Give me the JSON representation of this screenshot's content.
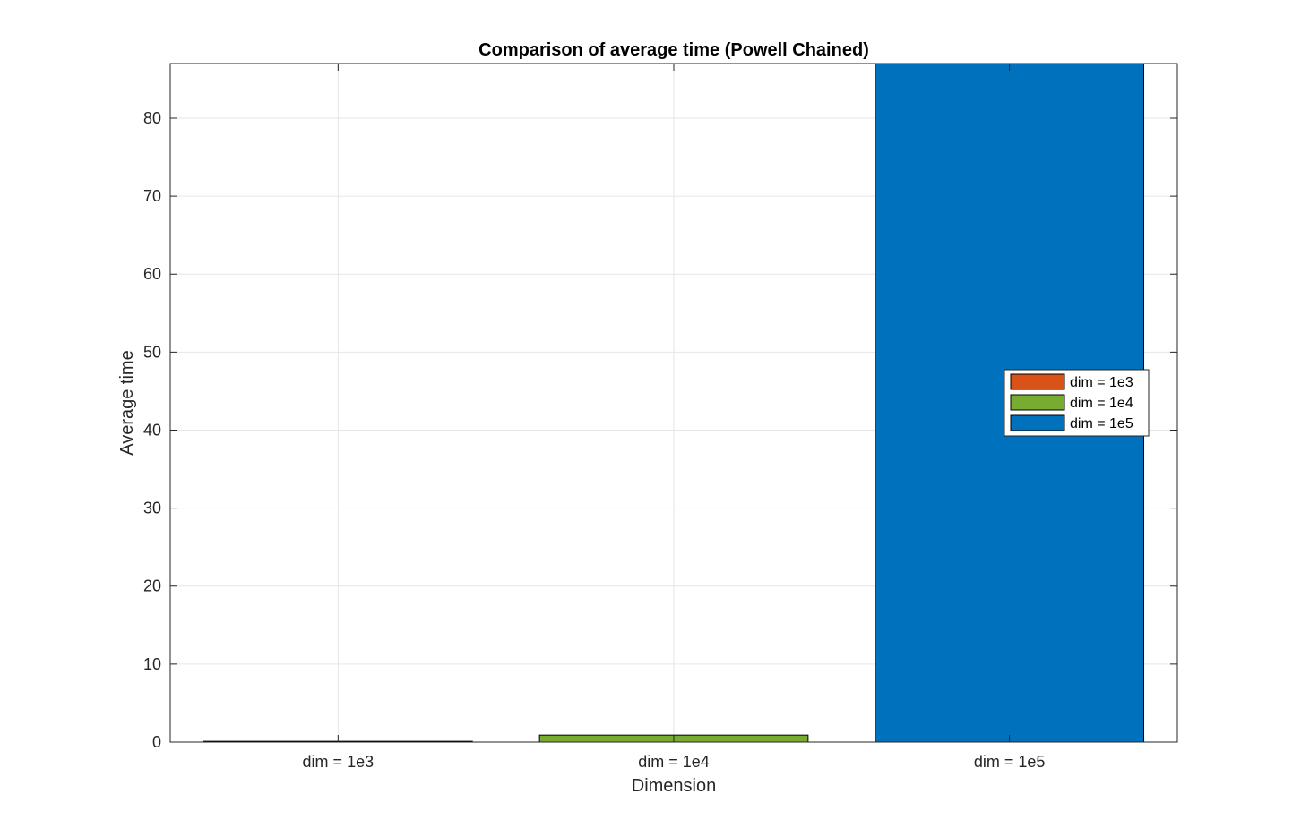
{
  "chart_data": {
    "type": "bar",
    "title": "Comparison of average time (Powell Chained)",
    "xlabel": "Dimension",
    "ylabel": "Average time",
    "categories": [
      "dim = 1e3",
      "dim = 1e4",
      "dim = 1e5"
    ],
    "values": [
      0.1,
      0.9,
      87
    ],
    "colors": [
      "#D95319",
      "#77AC30",
      "#0072BD"
    ],
    "ylim": [
      0,
      87
    ],
    "yticks": [
      0,
      10,
      20,
      30,
      40,
      50,
      60,
      70,
      80
    ],
    "grid": true,
    "legend": {
      "placement": "right",
      "entries": [
        "dim = 1e3",
        "dim = 1e4",
        "dim = 1e5"
      ]
    }
  }
}
